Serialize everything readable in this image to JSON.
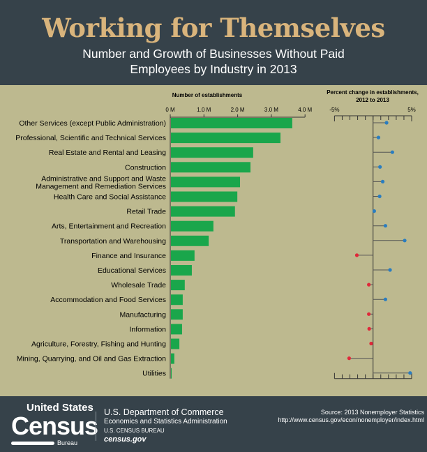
{
  "header": {
    "title": "Working for Themselves",
    "subtitle_line1": "Number and Growth of Businesses Without Paid",
    "subtitle_line2": "Employees by Industry in 2013"
  },
  "chart_data": [
    {
      "type": "bar",
      "orientation": "horizontal",
      "title": "Number of establishments",
      "xlim": [
        0,
        4000000
      ],
      "ticks": [
        "0 M",
        "1.0 M",
        "2.0 M",
        "3.0 M",
        "4.0 M"
      ],
      "bar_color": "#1aa64b",
      "categories": [
        "Other Services (except Public Administration)",
        "Professional, Scientific and Technical Services",
        "Real Estate and Rental and Leasing",
        "Construction",
        "Administrative and Support and Waste|Management and Remediation Services",
        "Health Care and Social Assistance",
        "Retail Trade",
        "Arts, Entertainment and Recreation",
        "Transportation and Warehousing",
        "Finance and Insurance",
        "Educational Services",
        "Wholesale Trade",
        "Accommodation and Food Services",
        "Manufacturing",
        "Information",
        "Agriculture, Forestry, Fishing and Hunting",
        "Mining, Quarrying, and Oil and Gas Extraction",
        "Utilities"
      ],
      "values": [
        3600000,
        3250000,
        2440000,
        2360000,
        2050000,
        1970000,
        1900000,
        1260000,
        1120000,
        700000,
        620000,
        410000,
        350000,
        350000,
        330000,
        250000,
        100000,
        20000
      ]
    },
    {
      "type": "dot",
      "title_line1": "Percent change in establishments,",
      "title_line2": "2012 to 2013",
      "xlim": [
        -5,
        5
      ],
      "ticks": [
        "-5%",
        "5%"
      ],
      "positive_color": "#2a7dc0",
      "negative_color": "#e0283a",
      "values": [
        1.75,
        0.7,
        2.5,
        0.9,
        1.25,
        0.85,
        0.15,
        1.6,
        4.1,
        -2.1,
        2.2,
        -0.55,
        1.6,
        -0.55,
        -0.5,
        -0.25,
        -3.1,
        4.8
      ]
    }
  ],
  "footer": {
    "logo_top": "United States",
    "logo_main": "Census",
    "logo_bottom": "Bureau",
    "dept": "U.S. Department of Commerce",
    "admin": "Economics and Statistics Administration",
    "bureau": "U.S. CENSUS BUREAU",
    "site": "census.gov",
    "source": "Source: 2013 Nonemployer Statistics",
    "url": "http://www.census.gov/econ/nonemployer/index.html"
  }
}
